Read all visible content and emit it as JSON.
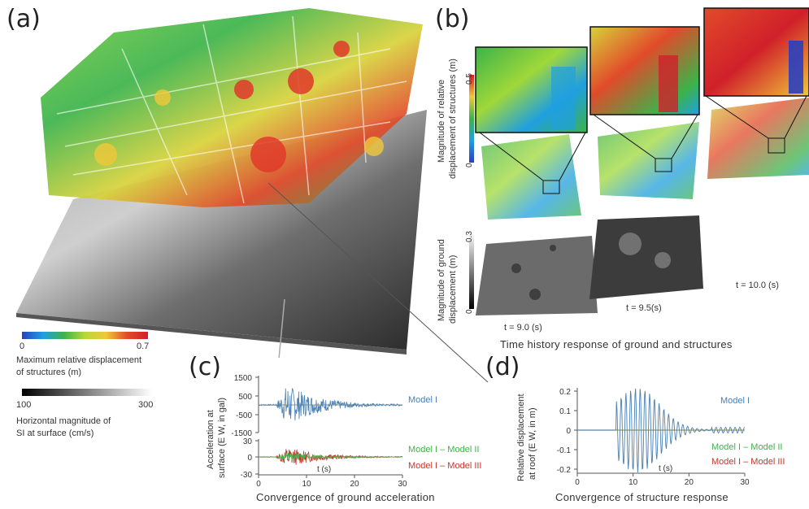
{
  "panels": {
    "a": {
      "label": "(a)",
      "struct_bar": {
        "min": "0",
        "max": "0.7",
        "title_line1": "Maximum relative displacement",
        "title_line2": "of structures  (m)"
      },
      "ground_bar": {
        "min": "100",
        "max": "300",
        "title_line1": "Horizontal magnitude of",
        "title_line2": "SI at surface  (cm/s)"
      }
    },
    "b": {
      "label": "(b)",
      "struct_axis_line1": "Magnitude of relative",
      "struct_axis_line2": "displacement of structures  (m)",
      "struct_ticks": [
        "0.5",
        "0"
      ],
      "ground_axis_line1": "Magnitude of ground",
      "ground_axis_line2": "displacement  (m)",
      "ground_ticks": [
        "0.3",
        "0"
      ],
      "times": [
        "t = 9.0  (s)",
        "t = 9.5(s)",
        "t = 10.0  (s)"
      ],
      "caption": "Time history response of ground and structures"
    },
    "c": {
      "label": "(c)",
      "ylabel_line1": "Acceleration at",
      "ylabel_line2": "surface (E W, in gal)",
      "top_ticks": [
        "1500",
        "500",
        "-500",
        "-1500"
      ],
      "bottom_ticks": [
        "30",
        "0",
        "-30"
      ],
      "x_ticks": [
        "0",
        "10",
        "20",
        "30"
      ],
      "xlabel": "t (s)",
      "legend": [
        "Model I",
        "Model I – Model II",
        "Model I – Model III"
      ],
      "caption": "Convergence of ground acceleration"
    },
    "d": {
      "label": "(d)",
      "ylabel_line1": "Relative displacement",
      "ylabel_line2": "at roof (E W, in m)",
      "y_ticks": [
        "0.2",
        "0.1",
        "0",
        "-0.1",
        "-0.2"
      ],
      "x_ticks": [
        "0",
        "10",
        "20",
        "30"
      ],
      "xlabel": "t (s)",
      "legend": [
        "Model I",
        "Model I – Model II",
        "Model I – Model III"
      ],
      "caption": "Convergence of structure response"
    }
  },
  "colors": {
    "model1": "#4a7fb5",
    "model2": "#3cb34a",
    "model3": "#c0392b",
    "baseline": "#9a9a5a"
  }
}
